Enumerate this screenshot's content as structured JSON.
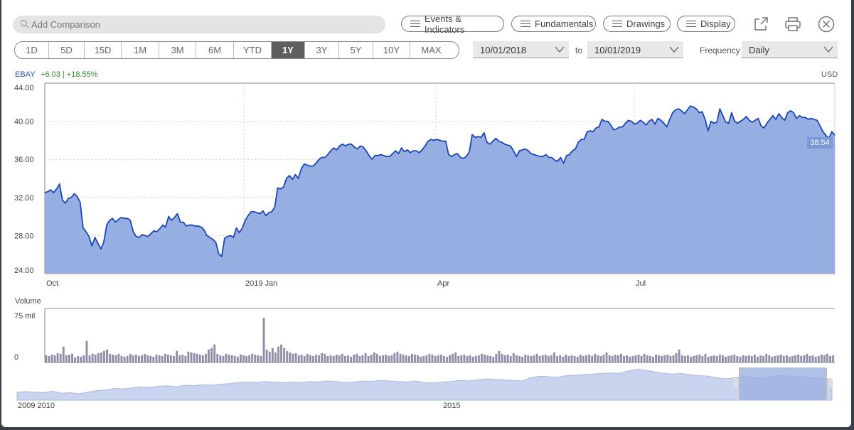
{
  "search": {
    "placeholder": "Add Comparison"
  },
  "toolbar": {
    "events_label": "Events & Indicators",
    "fundamentals_label": "Fundamentals",
    "drawings_label": "Drawings",
    "display_label": "Display"
  },
  "ranges": [
    {
      "label": "1D",
      "active": false
    },
    {
      "label": "5D",
      "active": false
    },
    {
      "label": "15D",
      "active": false
    },
    {
      "label": "1M",
      "active": false
    },
    {
      "label": "3M",
      "active": false
    },
    {
      "label": "6M",
      "active": false
    },
    {
      "label": "YTD",
      "active": false
    },
    {
      "label": "1Y",
      "active": true
    },
    {
      "label": "3Y",
      "active": false
    },
    {
      "label": "5Y",
      "active": false
    },
    {
      "label": "10Y",
      "active": false
    },
    {
      "label": "MAX",
      "active": false
    }
  ],
  "dates": {
    "from": "10/01/2018",
    "to_label": "to",
    "to": "10/01/2019"
  },
  "frequency": {
    "label": "Frequency",
    "value": "Daily"
  },
  "quote": {
    "symbol": "EBAY",
    "change": "+6.03 | +18.55%",
    "currency": "USD",
    "last": "38.54"
  },
  "volume_label": "Volume",
  "colors": {
    "line": "#1a47b8",
    "fill": "#97aee2",
    "accent": "#2e8b2e",
    "active_range": "#5f5f5f"
  },
  "chart_data": [
    {
      "type": "area",
      "series": [
        {
          "name": "EBAY",
          "values": [
            32.5,
            32.6,
            32.8,
            32.5,
            32.9,
            33.4,
            31.7,
            31.4,
            31.9,
            32.0,
            32.4,
            32.1,
            31.5,
            28.8,
            28.4,
            27.9,
            26.9,
            27.8,
            27.2,
            26.6,
            27.3,
            29.1,
            29.6,
            29.8,
            29.4,
            29.7,
            29.9,
            29.8,
            29.8,
            29.6,
            28.4,
            27.9,
            27.8,
            28.1,
            28.0,
            27.9,
            28.2,
            28.5,
            28.4,
            28.7,
            29.1,
            28.9,
            30.0,
            29.6,
            29.9,
            30.3,
            29.4,
            29.4,
            29.0,
            29.1,
            29.1,
            29.0,
            29.0,
            28.9,
            28.6,
            28.0,
            27.8,
            27.6,
            27.3,
            26.1,
            25.8,
            27.7,
            27.9,
            28.0,
            27.8,
            28.8,
            28.3,
            28.8,
            29.6,
            30.1,
            30.5,
            30.5,
            30.4,
            30.3,
            30.6,
            30.1,
            30.4,
            30.5,
            31.0,
            33.0,
            32.9,
            33.1,
            34.0,
            34.3,
            33.9,
            34.4,
            34.0,
            35.0,
            35.5,
            35.4,
            35.3,
            35.3,
            35.6,
            36.0,
            36.2,
            36.2,
            36.5,
            36.9,
            37.2,
            37.0,
            37.4,
            37.6,
            37.4,
            37.6,
            37.6,
            37.3,
            37.1,
            37.4,
            37.3,
            36.9,
            36.4,
            36.0,
            36.4,
            36.4,
            36.5,
            36.4,
            36.3,
            36.3,
            36.6,
            36.9,
            36.6,
            37.2,
            36.8,
            37.0,
            36.7,
            36.9,
            36.9,
            36.7,
            37.0,
            37.4,
            37.9,
            38.1,
            38.0,
            38.1,
            38.0,
            37.9,
            37.9,
            36.5,
            36.3,
            36.5,
            36.6,
            36.2,
            36.1,
            36.3,
            36.8,
            38.6,
            38.3,
            38.4,
            38.3,
            38.8,
            37.8,
            37.6,
            37.9,
            38.2,
            37.9,
            37.8,
            37.6,
            37.5,
            37.4,
            36.9,
            36.3,
            36.9,
            37.0,
            37.1,
            36.9,
            36.6,
            36.5,
            36.4,
            36.3,
            36.3,
            36.5,
            36.2,
            36.2,
            35.9,
            35.8,
            36.2,
            35.6,
            36.4,
            36.5,
            36.9,
            37.1,
            37.8,
            38.1,
            38.1,
            38.9,
            39.0,
            38.9,
            39.3,
            39.4,
            40.2,
            40.0,
            40.0,
            39.6,
            39.1,
            39.2,
            39.4,
            39.4,
            39.8,
            40.1,
            40.0,
            39.7,
            39.8,
            40.1,
            39.9,
            39.6,
            40.0,
            40.2,
            39.7,
            40.3,
            40.1,
            39.8,
            39.4,
            40.2,
            40.9,
            41.2,
            41.3,
            41.1,
            40.8,
            41.2,
            41.6,
            41.5,
            41.3,
            40.9,
            41.0,
            40.2,
            39.0,
            40.0,
            39.8,
            39.9,
            41.3,
            40.6,
            39.9,
            39.8,
            40.9,
            40.0,
            39.8,
            40.0,
            40.2,
            40.5,
            40.1,
            39.9,
            40.1,
            40.3,
            39.5,
            39.3,
            39.8,
            40.2,
            40.6,
            40.2,
            40.8,
            40.4,
            40.1,
            40.9,
            41.1,
            40.9,
            40.3,
            40.6,
            40.4,
            40.4,
            40.2,
            40.3,
            40.2,
            40.1,
            39.5,
            38.9,
            38.5,
            38.2,
            38.9,
            38.54
          ]
        }
      ],
      "x_ticks": [
        "Oct",
        "2019 Jan",
        "Apr",
        "Jul"
      ],
      "y_ticks": [
        "44.00",
        "40.00",
        "36.00",
        "32.00",
        "28.00",
        "24.00"
      ],
      "ylim": [
        24,
        44
      ],
      "grid": true
    },
    {
      "type": "bar",
      "series": [
        {
          "name": "Volume",
          "values": [
            10,
            9,
            11,
            10,
            13,
            12,
            22,
            10,
            11,
            12,
            7,
            9,
            8,
            10,
            30,
            10,
            12,
            11,
            13,
            14,
            16,
            18,
            12,
            11,
            10,
            12,
            9,
            8,
            9,
            12,
            10,
            11,
            9,
            10,
            12,
            10,
            9,
            8,
            11,
            10,
            9,
            12,
            11,
            10,
            9,
            16,
            10,
            11,
            9,
            15,
            14,
            13,
            12,
            11,
            10,
            12,
            18,
            20,
            25,
            12,
            10,
            9,
            12,
            11,
            10,
            9,
            8,
            11,
            10,
            9,
            10,
            12,
            11,
            10,
            9,
            62,
            18,
            15,
            20,
            14,
            22,
            25,
            20,
            16,
            14,
            12,
            13,
            10,
            11,
            9,
            12,
            10,
            9,
            11,
            10,
            13,
            12,
            9,
            10,
            9,
            11,
            10,
            12,
            9,
            10,
            8,
            11,
            12,
            9,
            10,
            13,
            9,
            11,
            14,
            12,
            9,
            10,
            11,
            9,
            10,
            13,
            15,
            12,
            11,
            10,
            9,
            12,
            11,
            10,
            8,
            9,
            10,
            12,
            11,
            9,
            10,
            11,
            9,
            8,
            10,
            12,
            14,
            9,
            10,
            11,
            9,
            10,
            8,
            9,
            10,
            12,
            11,
            10,
            9,
            8,
            12,
            16,
            12,
            10,
            11,
            9,
            13,
            10,
            9,
            8,
            11,
            10,
            9,
            10,
            12,
            9,
            10,
            11,
            9,
            10,
            14,
            9,
            10,
            8,
            11,
            9,
            10,
            9,
            8,
            11,
            9,
            10,
            11,
            9,
            12,
            10,
            9,
            11,
            14,
            10,
            9,
            11,
            10,
            12,
            9,
            10,
            8,
            9,
            10,
            11,
            9,
            12,
            10,
            9,
            8,
            11,
            10,
            9,
            10,
            11,
            9,
            10,
            13,
            18,
            10,
            9,
            10,
            8,
            9,
            10,
            11,
            9,
            12,
            8,
            9,
            10,
            9,
            11,
            10,
            8,
            9,
            10,
            11,
            9,
            8,
            10,
            9,
            10,
            9,
            11,
            8,
            10,
            9,
            12,
            10,
            8,
            9,
            10,
            11,
            9,
            10,
            8,
            9,
            10,
            11,
            9,
            10,
            12,
            9,
            10,
            8,
            9,
            11,
            10,
            12,
            9,
            10
          ]
        }
      ],
      "y_ticks": [
        "75 mil",
        "0"
      ],
      "ylim": [
        0,
        75
      ]
    },
    {
      "type": "area",
      "series": [
        {
          "name": "EBAY",
          "values": [
            15,
            16,
            15,
            14,
            17,
            13,
            14,
            12,
            15,
            18,
            19,
            22,
            21,
            23,
            25,
            24,
            26,
            27,
            25,
            28,
            27,
            29,
            28,
            30,
            31,
            33,
            34,
            33,
            35,
            34,
            33,
            34,
            33,
            35,
            34,
            36,
            35,
            33,
            34,
            36,
            35,
            37,
            36,
            35,
            34,
            36,
            33,
            32,
            34,
            35,
            37,
            36,
            38,
            40,
            39,
            38,
            37,
            36,
            42,
            45,
            44,
            43,
            46,
            47,
            48,
            49,
            50,
            51,
            50,
            55,
            58,
            56,
            53,
            50,
            49,
            50,
            48,
            46,
            45,
            42,
            40,
            42,
            44,
            43,
            42,
            44,
            46,
            45,
            44,
            43,
            42,
            41,
            38
          ]
        }
      ],
      "x_ticks": [
        "2009 2010",
        "2015"
      ]
    }
  ]
}
